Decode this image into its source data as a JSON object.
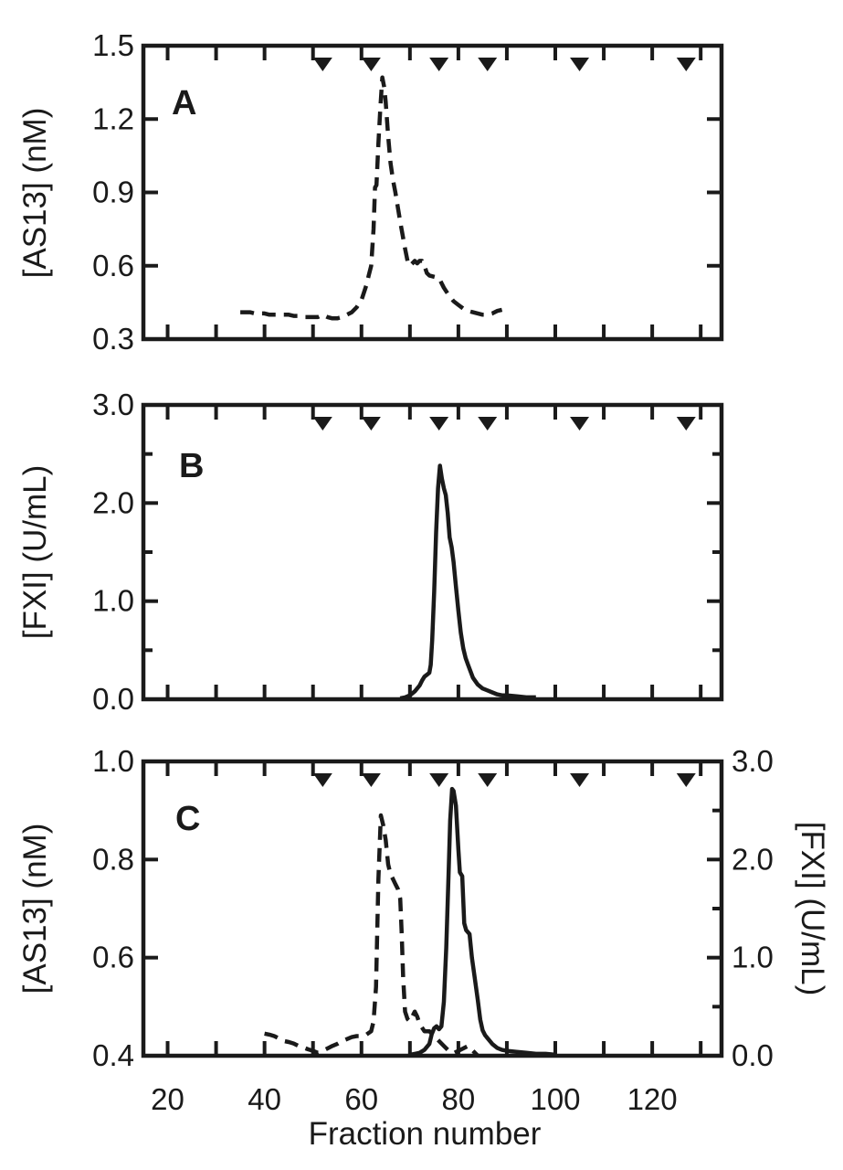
{
  "figure": {
    "description": "Three stacked chromatography elution profile panels sharing one x axis",
    "colors": {
      "line": "#1a1a1a",
      "panel_letter": "#c61168",
      "background": "#ffffff"
    }
  },
  "x_axis": {
    "label": "Fraction number",
    "min": 15,
    "max": 134.3,
    "ticks": [
      20,
      30,
      40,
      50,
      60,
      70,
      80,
      90,
      100,
      110,
      120,
      130
    ],
    "labeled_ticks": [
      20,
      40,
      60,
      80,
      100,
      120
    ],
    "labeled_tick_labels": [
      "20",
      "40",
      "60",
      "80",
      "100",
      "120"
    ]
  },
  "fraction_markers": {
    "symbol": "down-triangle",
    "positions": [
      52,
      62,
      76,
      86,
      105,
      127
    ]
  },
  "chart_data": [
    {
      "type": "line",
      "panel_label": "A",
      "y_axis": {
        "label": "[AS13] (nM)",
        "min": 0.3,
        "max": 1.5,
        "majors": [
          0.3,
          0.6,
          0.9,
          1.2,
          1.5
        ],
        "minors": [],
        "tick_labels": [
          "0.3",
          "0.6",
          "0.9",
          "1.2",
          "1.5"
        ]
      },
      "series": [
        {
          "name": "[AS13]",
          "line_style": "dashed",
          "axis": "left",
          "points": [
            [
              35,
              0.41
            ],
            [
              36,
              0.41
            ],
            [
              37,
              0.41
            ],
            [
              38,
              0.405
            ],
            [
              39,
              0.405
            ],
            [
              40,
              0.405
            ],
            [
              41,
              0.4
            ],
            [
              42,
              0.4
            ],
            [
              43,
              0.4
            ],
            [
              44,
              0.4
            ],
            [
              45,
              0.4
            ],
            [
              46,
              0.395
            ],
            [
              47,
              0.395
            ],
            [
              48,
              0.39
            ],
            [
              49,
              0.39
            ],
            [
              50,
              0.39
            ],
            [
              51,
              0.39
            ],
            [
              52,
              0.4
            ],
            [
              53,
              0.39
            ],
            [
              54,
              0.385
            ],
            [
              55,
              0.385
            ],
            [
              56,
              0.39
            ],
            [
              57,
              0.4
            ],
            [
              58,
              0.41
            ],
            [
              59,
              0.43
            ],
            [
              60,
              0.46
            ],
            [
              61,
              0.52
            ],
            [
              61.5,
              0.56
            ],
            [
              62,
              0.6
            ],
            [
              62.5,
              0.75
            ],
            [
              62.8,
              0.92
            ],
            [
              63.1,
              0.93
            ],
            [
              63.5,
              1.1
            ],
            [
              63.9,
              1.25
            ],
            [
              64.3,
              1.37
            ],
            [
              64.7,
              1.33
            ],
            [
              65,
              1.27
            ],
            [
              65.5,
              1.13
            ],
            [
              66,
              1.02
            ],
            [
              66.5,
              0.95
            ],
            [
              67,
              0.9
            ],
            [
              68,
              0.78
            ],
            [
              69,
              0.67
            ],
            [
              69.5,
              0.62
            ],
            [
              70,
              0.6
            ],
            [
              70.5,
              0.61
            ],
            [
              71,
              0.62
            ],
            [
              71.5,
              0.61
            ],
            [
              72,
              0.62
            ],
            [
              72.5,
              0.62
            ],
            [
              73,
              0.6
            ],
            [
              73.5,
              0.57
            ],
            [
              74,
              0.56
            ],
            [
              75,
              0.555
            ],
            [
              76,
              0.55
            ],
            [
              76.5,
              0.53
            ],
            [
              77,
              0.51
            ],
            [
              78,
              0.48
            ],
            [
              79,
              0.455
            ],
            [
              80,
              0.44
            ],
            [
              81,
              0.425
            ],
            [
              82,
              0.415
            ],
            [
              83,
              0.41
            ],
            [
              84,
              0.405
            ],
            [
              85,
              0.4
            ],
            [
              86,
              0.4
            ],
            [
              87,
              0.405
            ],
            [
              88,
              0.415
            ],
            [
              89,
              0.42
            ]
          ]
        }
      ]
    },
    {
      "type": "line",
      "panel_label": "B",
      "y_axis": {
        "label": "[FXI] (U/mL)",
        "min": 0.0,
        "max": 3.0,
        "majors": [
          0.0,
          1.0,
          2.0,
          3.0
        ],
        "minors": [
          0.5,
          1.5,
          2.5
        ],
        "tick_labels": [
          "0.0",
          "1.0",
          "2.0",
          "3.0"
        ]
      },
      "series": [
        {
          "name": "[FXI]",
          "line_style": "solid",
          "axis": "left",
          "points": [
            [
              68,
              0.01
            ],
            [
              69,
              0.02
            ],
            [
              70,
              0.04
            ],
            [
              71,
              0.08
            ],
            [
              72,
              0.14
            ],
            [
              72.5,
              0.19
            ],
            [
              73,
              0.23
            ],
            [
              73.5,
              0.25
            ],
            [
              74,
              0.27
            ],
            [
              74.3,
              0.35
            ],
            [
              74.6,
              0.6
            ],
            [
              75,
              1.1
            ],
            [
              75.4,
              1.7
            ],
            [
              75.8,
              2.15
            ],
            [
              76.2,
              2.38
            ],
            [
              76.6,
              2.25
            ],
            [
              77,
              2.15
            ],
            [
              77.4,
              2.08
            ],
            [
              77.8,
              1.9
            ],
            [
              78.2,
              1.65
            ],
            [
              78.6,
              1.55
            ],
            [
              79,
              1.4
            ],
            [
              79.5,
              1.15
            ],
            [
              80,
              0.9
            ],
            [
              80.5,
              0.68
            ],
            [
              81,
              0.52
            ],
            [
              81.5,
              0.42
            ],
            [
              82,
              0.35
            ],
            [
              83,
              0.22
            ],
            [
              84,
              0.15
            ],
            [
              85,
              0.11
            ],
            [
              86,
              0.09
            ],
            [
              87,
              0.07
            ],
            [
              88,
              0.05
            ],
            [
              89,
              0.04
            ],
            [
              90,
              0.04
            ],
            [
              92,
              0.03
            ],
            [
              94,
              0.02
            ],
            [
              96,
              0.02
            ]
          ]
        }
      ]
    },
    {
      "type": "line",
      "panel_label": "C",
      "y_axis": {
        "label": "[AS13] (nM)",
        "min": 0.4,
        "max": 1.0,
        "majors": [
          0.4,
          0.6,
          0.8,
          1.0
        ],
        "minors": [],
        "tick_labels": [
          "0.4",
          "0.6",
          "0.8",
          "1.0"
        ]
      },
      "y_axis_right": {
        "label": "[FXI] (U/mL)",
        "min": 0.0,
        "max": 3.0,
        "majors": [
          0.0,
          1.0,
          2.0,
          3.0
        ],
        "minors": [
          0.5,
          1.5,
          2.5
        ],
        "tick_labels": [
          "0.0",
          "1.0",
          "2.0",
          "3.0"
        ]
      },
      "series": [
        {
          "name": "[AS13]",
          "line_style": "dashed",
          "axis": "left",
          "points": [
            [
              40,
              0.445
            ],
            [
              41,
              0.443
            ],
            [
              42,
              0.44
            ],
            [
              43,
              0.435
            ],
            [
              44,
              0.43
            ],
            [
              45,
              0.428
            ],
            [
              46,
              0.425
            ],
            [
              47,
              0.42
            ],
            [
              48,
              0.417
            ],
            [
              49,
              0.413
            ],
            [
              50,
              0.41
            ],
            [
              51,
              0.406
            ],
            [
              52,
              0.41
            ],
            [
              53,
              0.415
            ],
            [
              54,
              0.42
            ],
            [
              55,
              0.424
            ],
            [
              56,
              0.43
            ],
            [
              57,
              0.434
            ],
            [
              58,
              0.438
            ],
            [
              59,
              0.44
            ],
            [
              60,
              0.44
            ],
            [
              61,
              0.443
            ],
            [
              62,
              0.45
            ],
            [
              62.5,
              0.47
            ],
            [
              63,
              0.54
            ],
            [
              63.5,
              0.76
            ],
            [
              64,
              0.89
            ],
            [
              64.5,
              0.87
            ],
            [
              65,
              0.84
            ],
            [
              65.5,
              0.79
            ],
            [
              66,
              0.77
            ],
            [
              66.5,
              0.76
            ],
            [
              67,
              0.75
            ],
            [
              67.5,
              0.74
            ],
            [
              68,
              0.72
            ],
            [
              68.3,
              0.65
            ],
            [
              68.6,
              0.56
            ],
            [
              69,
              0.49
            ],
            [
              69.5,
              0.475
            ],
            [
              70,
              0.47
            ],
            [
              70.5,
              0.48
            ],
            [
              71,
              0.49
            ],
            [
              71.5,
              0.48
            ],
            [
              72,
              0.465
            ],
            [
              73,
              0.45
            ],
            [
              74,
              0.45
            ],
            [
              75,
              0.44
            ],
            [
              76,
              0.43
            ],
            [
              77,
              0.42
            ],
            [
              78,
              0.41
            ],
            [
              79,
              0.405
            ],
            [
              80,
              0.41
            ],
            [
              81,
              0.415
            ],
            [
              82,
              0.42
            ],
            [
              83,
              0.41
            ],
            [
              84,
              0.4
            ]
          ]
        },
        {
          "name": "[FXI]",
          "line_style": "solid",
          "axis": "right",
          "points": [
            [
              70,
              0.01
            ],
            [
              71,
              0.02
            ],
            [
              72,
              0.03
            ],
            [
              73,
              0.06
            ],
            [
              74,
              0.12
            ],
            [
              74.5,
              0.22
            ],
            [
              75,
              0.28
            ],
            [
              75.5,
              0.3
            ],
            [
              76,
              0.27
            ],
            [
              76.5,
              0.3
            ],
            [
              77,
              0.55
            ],
            [
              77.5,
              1.1
            ],
            [
              78,
              1.9
            ],
            [
              78.3,
              2.4
            ],
            [
              78.7,
              2.72
            ],
            [
              79,
              2.7
            ],
            [
              79.5,
              2.55
            ],
            [
              80,
              2.1
            ],
            [
              80.3,
              1.87
            ],
            [
              80.8,
              1.83
            ],
            [
              81.2,
              1.35
            ],
            [
              81.6,
              1.28
            ],
            [
              82.3,
              1.24
            ],
            [
              82.8,
              1.0
            ],
            [
              83.3,
              0.82
            ],
            [
              84,
              0.57
            ],
            [
              84.5,
              0.37
            ],
            [
              85,
              0.26
            ],
            [
              85.5,
              0.21
            ],
            [
              86,
              0.18
            ],
            [
              87,
              0.12
            ],
            [
              88,
              0.08
            ],
            [
              89,
              0.06
            ],
            [
              90,
              0.05
            ],
            [
              92,
              0.04
            ],
            [
              94,
              0.03
            ],
            [
              96,
              0.02
            ],
            [
              98,
              0.02
            ],
            [
              100,
              0.01
            ]
          ]
        }
      ]
    }
  ]
}
